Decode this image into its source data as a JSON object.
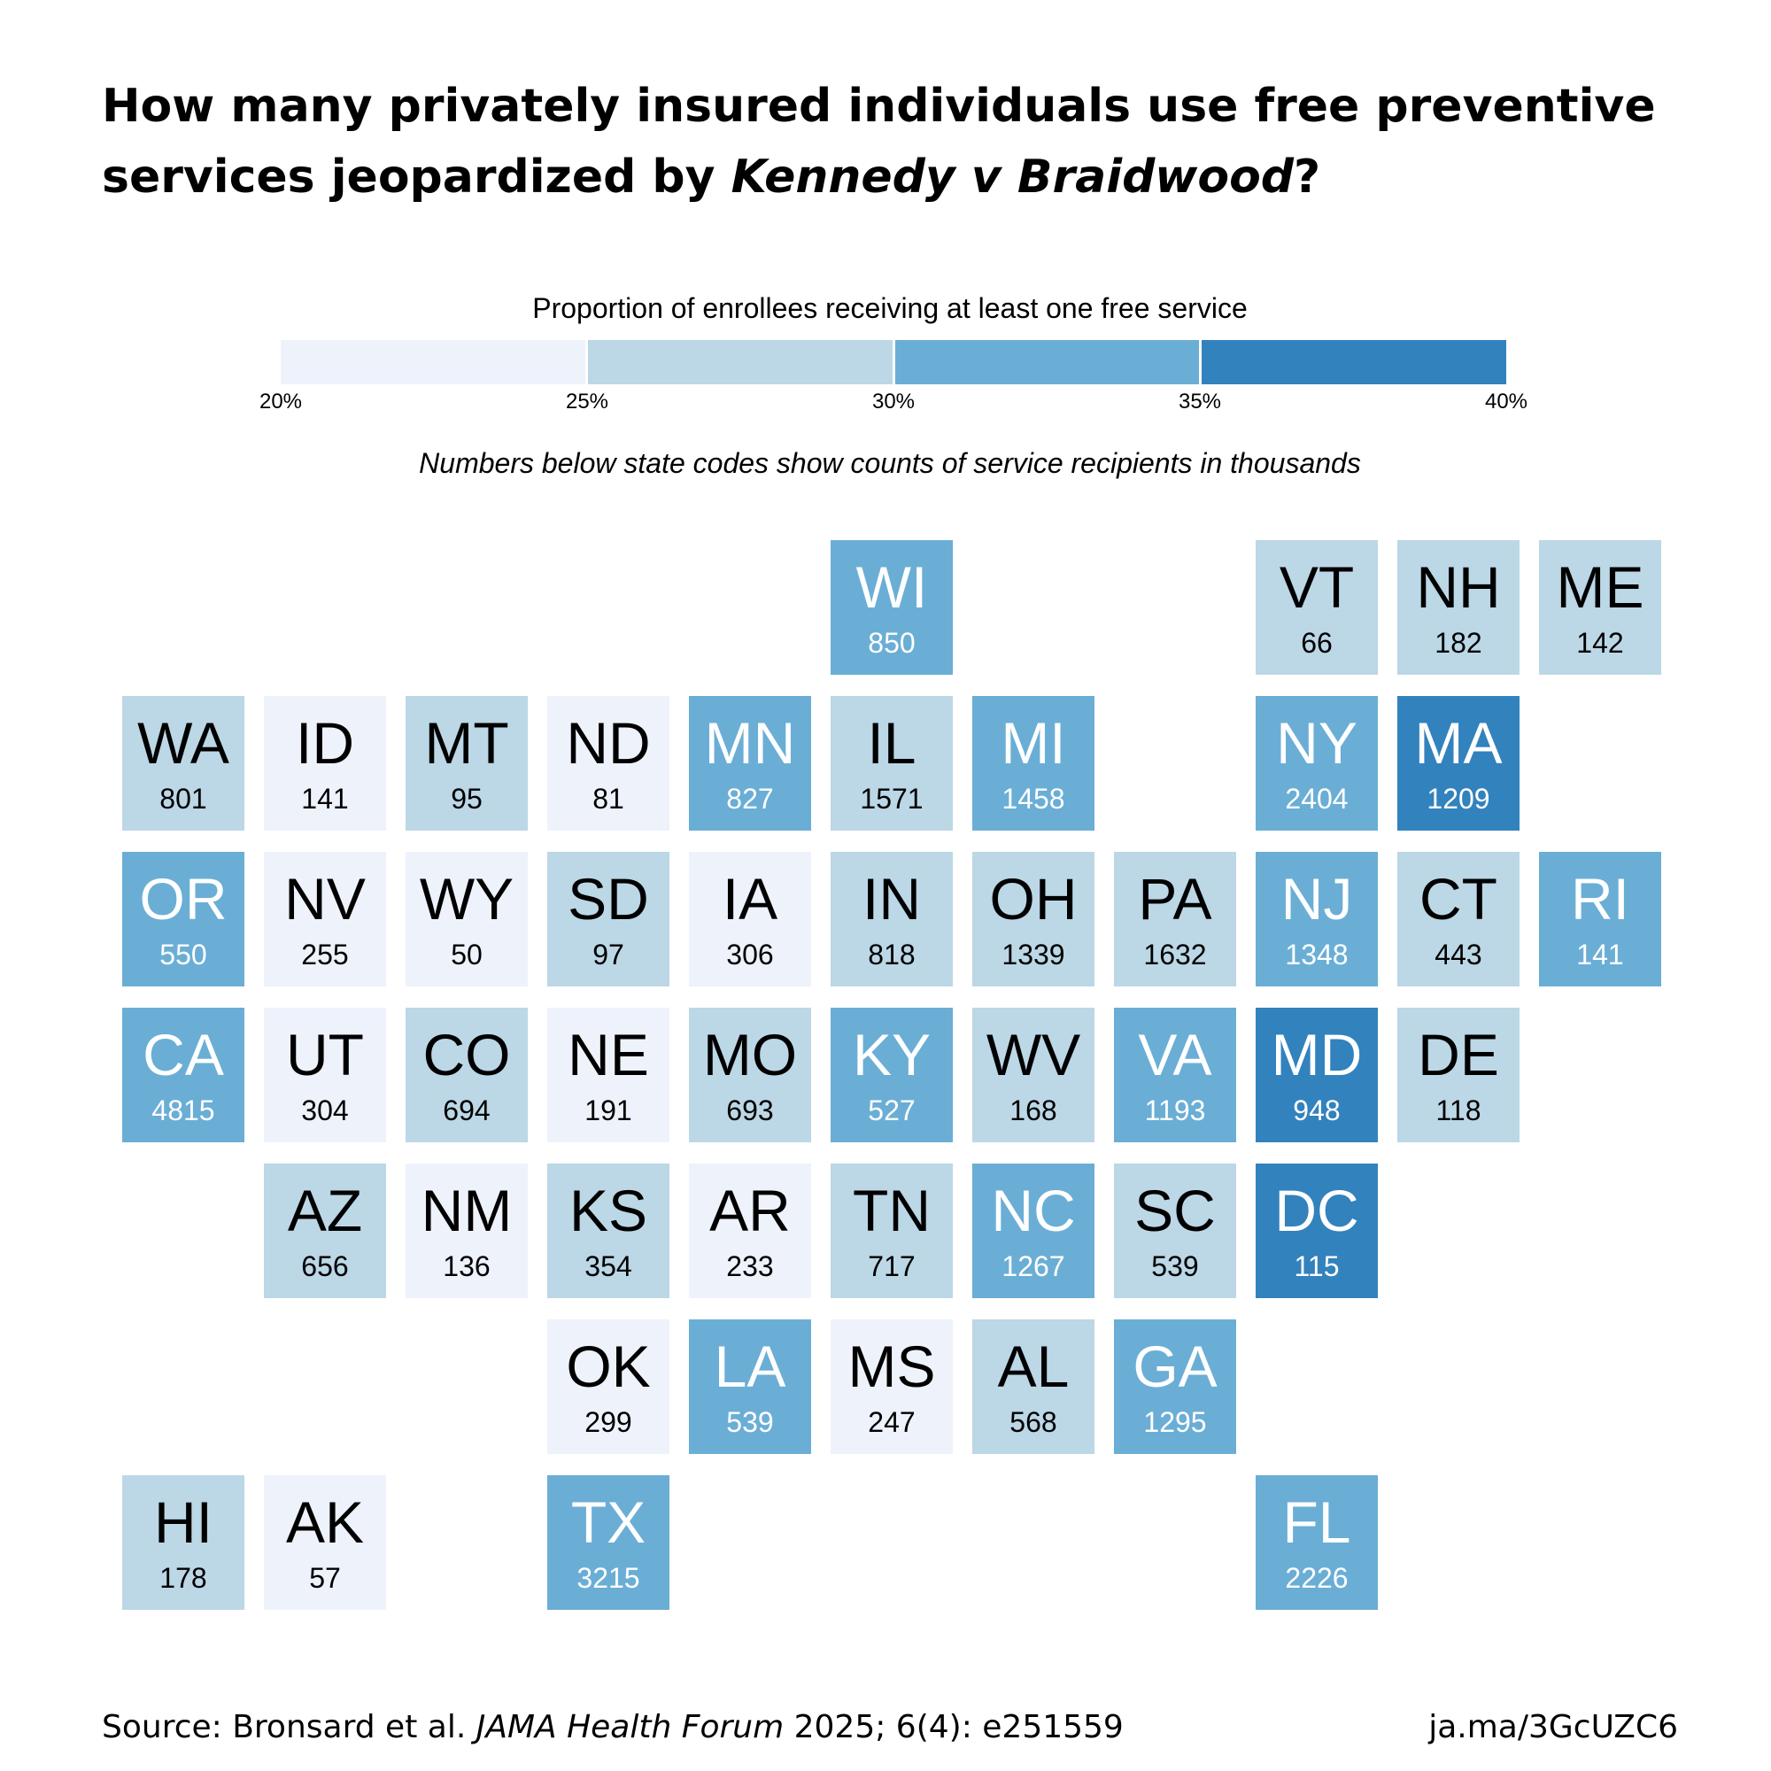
{
  "title": {
    "line1": "How many privately insured individuals use free preventive",
    "line2_prefix": "services jeopardized by ",
    "line2_italic": "Kennedy v Braidwood",
    "line2_suffix": "?"
  },
  "legend": {
    "title": "Proportion of enrollees receiving at least one free service",
    "bins": [
      {
        "from": 20,
        "to": 25,
        "color": "#eef2fb"
      },
      {
        "from": 25,
        "to": 30,
        "color": "#bcd7e6"
      },
      {
        "from": 30,
        "to": 35,
        "color": "#6aaed6"
      },
      {
        "from": 35,
        "to": 40,
        "color": "#3282bd"
      }
    ],
    "ticks": [
      "20%",
      "25%",
      "30%",
      "35%",
      "40%"
    ]
  },
  "subnote": "Numbers below state codes show counts of service recipients in thousands",
  "chart_data": {
    "type": "heatmap",
    "value_units": "thousands of service recipients",
    "color_legend": "Proportion of enrollees receiving at least one free service",
    "states": [
      {
        "code": "WI",
        "count": 850,
        "bin": 2,
        "row": 0,
        "col": 5
      },
      {
        "code": "VT",
        "count": 66,
        "bin": 1,
        "row": 0,
        "col": 8
      },
      {
        "code": "NH",
        "count": 182,
        "bin": 1,
        "row": 0,
        "col": 9
      },
      {
        "code": "ME",
        "count": 142,
        "bin": 1,
        "row": 0,
        "col": 10
      },
      {
        "code": "WA",
        "count": 801,
        "bin": 1,
        "row": 1,
        "col": 0
      },
      {
        "code": "ID",
        "count": 141,
        "bin": 0,
        "row": 1,
        "col": 1
      },
      {
        "code": "MT",
        "count": 95,
        "bin": 1,
        "row": 1,
        "col": 2
      },
      {
        "code": "ND",
        "count": 81,
        "bin": 0,
        "row": 1,
        "col": 3
      },
      {
        "code": "MN",
        "count": 827,
        "bin": 2,
        "row": 1,
        "col": 4
      },
      {
        "code": "IL",
        "count": 1571,
        "bin": 1,
        "row": 1,
        "col": 5
      },
      {
        "code": "MI",
        "count": 1458,
        "bin": 2,
        "row": 1,
        "col": 6
      },
      {
        "code": "NY",
        "count": 2404,
        "bin": 2,
        "row": 1,
        "col": 8
      },
      {
        "code": "MA",
        "count": 1209,
        "bin": 3,
        "row": 1,
        "col": 9
      },
      {
        "code": "OR",
        "count": 550,
        "bin": 2,
        "row": 2,
        "col": 0
      },
      {
        "code": "NV",
        "count": 255,
        "bin": 0,
        "row": 2,
        "col": 1
      },
      {
        "code": "WY",
        "count": 50,
        "bin": 0,
        "row": 2,
        "col": 2
      },
      {
        "code": "SD",
        "count": 97,
        "bin": 1,
        "row": 2,
        "col": 3
      },
      {
        "code": "IA",
        "count": 306,
        "bin": 0,
        "row": 2,
        "col": 4
      },
      {
        "code": "IN",
        "count": 818,
        "bin": 1,
        "row": 2,
        "col": 5
      },
      {
        "code": "OH",
        "count": 1339,
        "bin": 1,
        "row": 2,
        "col": 6
      },
      {
        "code": "PA",
        "count": 1632,
        "bin": 1,
        "row": 2,
        "col": 7
      },
      {
        "code": "NJ",
        "count": 1348,
        "bin": 2,
        "row": 2,
        "col": 8
      },
      {
        "code": "CT",
        "count": 443,
        "bin": 1,
        "row": 2,
        "col": 9
      },
      {
        "code": "RI",
        "count": 141,
        "bin": 2,
        "row": 2,
        "col": 10
      },
      {
        "code": "CA",
        "count": 4815,
        "bin": 2,
        "row": 3,
        "col": 0
      },
      {
        "code": "UT",
        "count": 304,
        "bin": 0,
        "row": 3,
        "col": 1
      },
      {
        "code": "CO",
        "count": 694,
        "bin": 1,
        "row": 3,
        "col": 2
      },
      {
        "code": "NE",
        "count": 191,
        "bin": 0,
        "row": 3,
        "col": 3
      },
      {
        "code": "MO",
        "count": 693,
        "bin": 1,
        "row": 3,
        "col": 4
      },
      {
        "code": "KY",
        "count": 527,
        "bin": 2,
        "row": 3,
        "col": 5
      },
      {
        "code": "WV",
        "count": 168,
        "bin": 1,
        "row": 3,
        "col": 6
      },
      {
        "code": "VA",
        "count": 1193,
        "bin": 2,
        "row": 3,
        "col": 7
      },
      {
        "code": "MD",
        "count": 948,
        "bin": 3,
        "row": 3,
        "col": 8
      },
      {
        "code": "DE",
        "count": 118,
        "bin": 1,
        "row": 3,
        "col": 9
      },
      {
        "code": "AZ",
        "count": 656,
        "bin": 1,
        "row": 4,
        "col": 1
      },
      {
        "code": "NM",
        "count": 136,
        "bin": 0,
        "row": 4,
        "col": 2
      },
      {
        "code": "KS",
        "count": 354,
        "bin": 1,
        "row": 4,
        "col": 3
      },
      {
        "code": "AR",
        "count": 233,
        "bin": 0,
        "row": 4,
        "col": 4
      },
      {
        "code": "TN",
        "count": 717,
        "bin": 1,
        "row": 4,
        "col": 5
      },
      {
        "code": "NC",
        "count": 1267,
        "bin": 2,
        "row": 4,
        "col": 6
      },
      {
        "code": "SC",
        "count": 539,
        "bin": 1,
        "row": 4,
        "col": 7
      },
      {
        "code": "DC",
        "count": 115,
        "bin": 3,
        "row": 4,
        "col": 8
      },
      {
        "code": "OK",
        "count": 299,
        "bin": 0,
        "row": 5,
        "col": 3
      },
      {
        "code": "LA",
        "count": 539,
        "bin": 2,
        "row": 5,
        "col": 4
      },
      {
        "code": "MS",
        "count": 247,
        "bin": 0,
        "row": 5,
        "col": 5
      },
      {
        "code": "AL",
        "count": 568,
        "bin": 1,
        "row": 5,
        "col": 6
      },
      {
        "code": "GA",
        "count": 1295,
        "bin": 2,
        "row": 5,
        "col": 7
      },
      {
        "code": "HI",
        "count": 178,
        "bin": 1,
        "row": 6,
        "col": 0
      },
      {
        "code": "AK",
        "count": 57,
        "bin": 0,
        "row": 6,
        "col": 1
      },
      {
        "code": "TX",
        "count": 3215,
        "bin": 2,
        "row": 6,
        "col": 3
      },
      {
        "code": "FL",
        "count": 2226,
        "bin": 2,
        "row": 6,
        "col": 8
      }
    ]
  },
  "source": {
    "prefix": "Source: Bronsard et al. ",
    "journal": "JAMA Health Forum",
    "suffix": " 2025; 6(4): e251559"
  },
  "link": "ja.ma/3GcUZC6"
}
